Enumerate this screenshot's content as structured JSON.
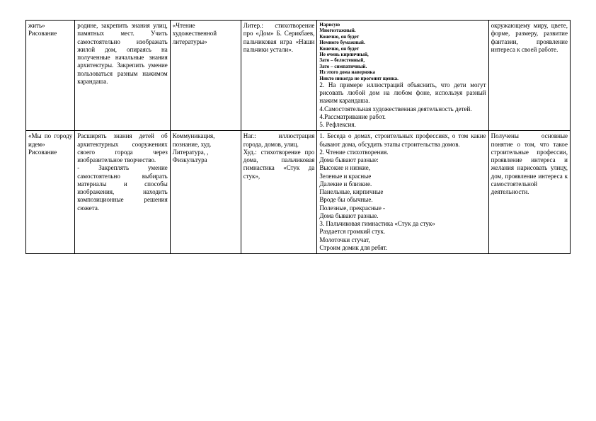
{
  "row1": {
    "c1": "жить»\nРисование",
    "c2": "родине, закрепить знания улиц, памятных мест. Учить самостоятельно изображать жилой дом, опираясь на полученные начальные знания архитектуры. Закрепить умение пользоваться разным нажимом карандаша.",
    "c3": "«Чтение художественной литературы»",
    "c4": "Литер.: стихотворение про «Дом» Б. Серикбаев, пальчиковая игра «Наши пальчики устали».",
    "c5_small": "Нарисую\nМногоэтажный.\nКонечно, он будет\nНемного бумажный.\nКонечно, он будет\nНе очень кирпичный,\nЗато – белостенный,\nЗато – симпатичный.\nИз этого дома наверняка\nНикто никогда не прогонит щенка.",
    "c5_rest": "2. На примере иллюстраций объяснить, что дети могут рисовать любой дом на любом фоне, используя разный нажим карандаша.\n4.Самостоятельная художественная деятельность детей.\n4.Рассматривание работ.\n5. Рефлексия.",
    "c6": "окружающему миру, цвете, форме, размеру, развитие фантазии, проявление интереса к своей работе."
  },
  "row2": {
    "c1_a": "«Мы по городу идем»",
    "c1_b": "Рисование",
    "c2": "Расширять знания детей об архитектурных сооружениях своего города через изобразительное творчество.\n- Закреплять умение самостоятельно выбирать материалы и способы изображения, находить композиционные решения сюжета.",
    "c3": "Коммуникация, познание, худ. Литература, , Физкультура",
    "c4": "Наг.: иллюстрация города, домов, улиц.\nХуд.: стихотворение про дома, пальчиковая гимнастика «Стук да стук»,",
    "c5": "1. Беседа о домах, строительных профессиях, о том какие бывают дома, обсудить этапы строительства домов.\n2. Чтение стихотворения.\nДома бывают разные:\nВысокие и низкие,\nЗеленые и красные\nДалекие и близкие.\nПанельные, кирпичные\nВроде бы обычные.\nПолезные, прекрасные -\nДома бывают разные.\n3. Пальчиковая гимнастика «Стук да стук»\nРаздается громкий стук.\nМолоточки стучат,\nСтроим домик для ребят.",
    "c6": "Получены основные понятие о том, что такое строительные профессии, проявление интереса и желания нарисовать улицу, дом, проявление интереса к самостоятельной деятельности."
  }
}
